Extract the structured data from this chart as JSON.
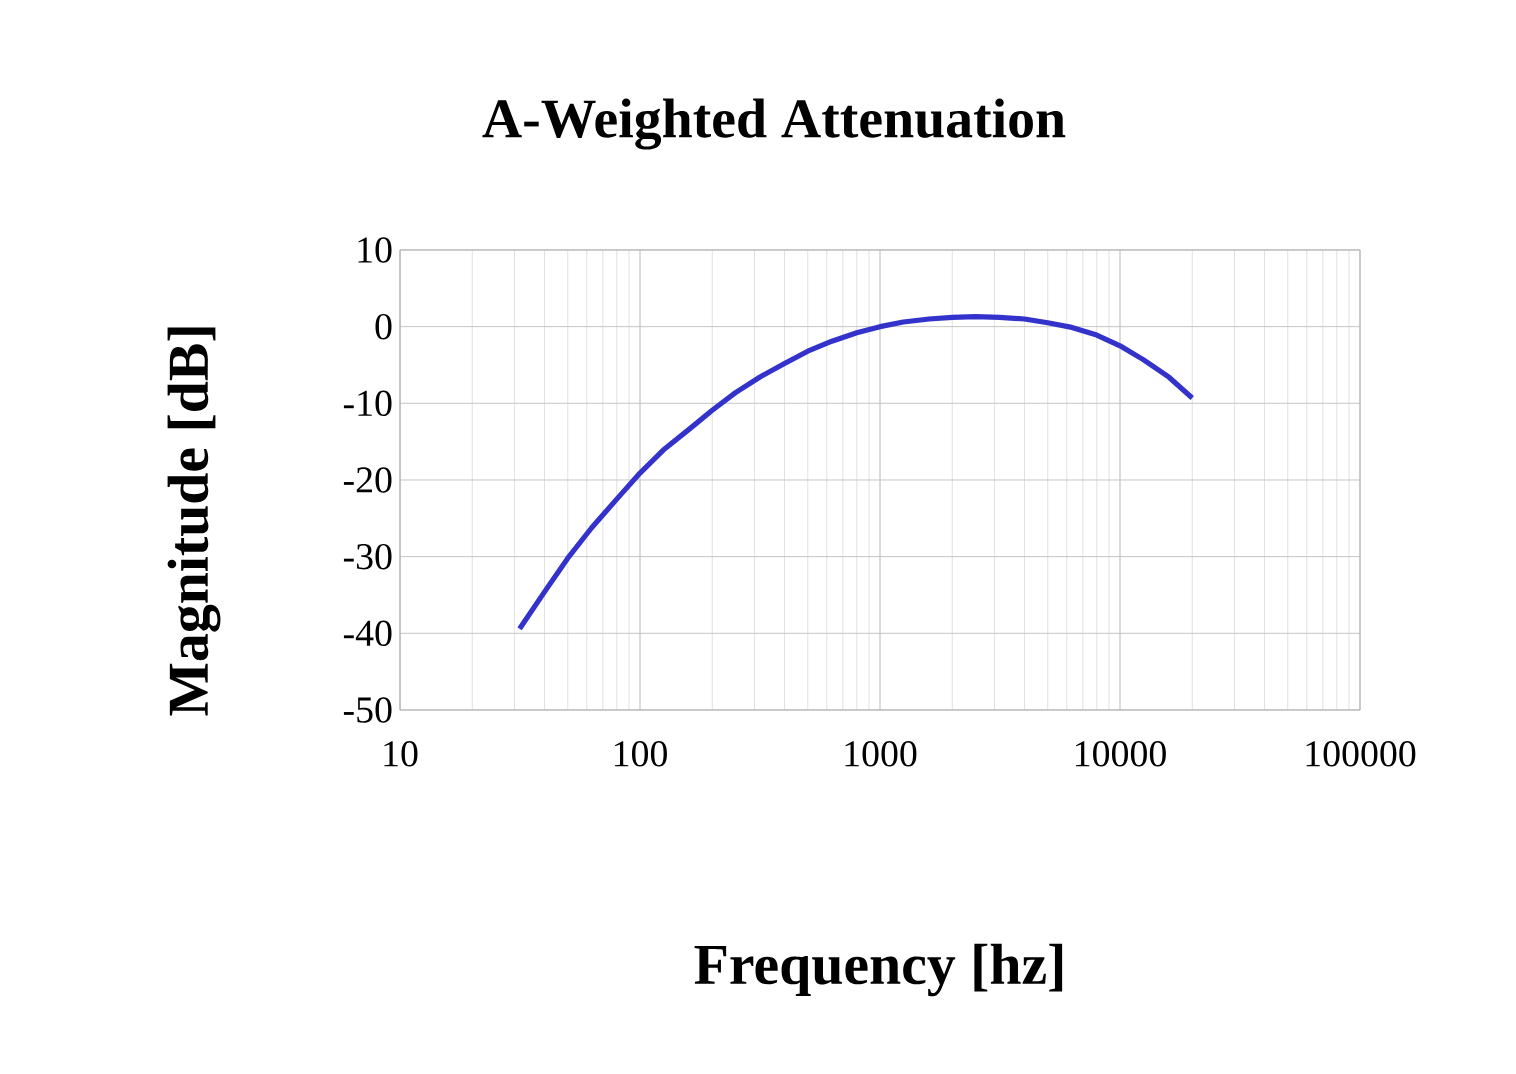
{
  "chart_data": {
    "type": "line",
    "title": "A-Weighted Attenuation",
    "xlabel": "Frequency [hz]",
    "ylabel": "Magnitude [dB]",
    "log": "x",
    "grid": true,
    "xlim": [
      10,
      100000
    ],
    "xticks": [
      10,
      100,
      1000,
      10000,
      100000
    ],
    "ylim": [
      -50,
      10
    ],
    "yticks": [
      -50,
      -40,
      -30,
      -20,
      -10,
      0,
      10
    ],
    "series": [
      {
        "color": "#3333cc",
        "x": [
          31.5,
          40,
          50,
          63,
          80,
          100,
          125,
          160,
          200,
          250,
          315,
          400,
          500,
          630,
          800,
          1000,
          1250,
          1600,
          2000,
          2500,
          3150,
          4000,
          5000,
          6300,
          8000,
          10000,
          12500,
          16000,
          20000
        ],
        "values": [
          -39.4,
          -34.6,
          -30.2,
          -26.2,
          -22.5,
          -19.1,
          -16.1,
          -13.4,
          -10.9,
          -8.6,
          -6.6,
          -4.8,
          -3.2,
          -1.9,
          -0.8,
          0,
          0.6,
          1.0,
          1.2,
          1.3,
          1.2,
          1.0,
          0.5,
          -0.1,
          -1.1,
          -2.5,
          -4.3,
          -6.6,
          -9.3
        ]
      }
    ]
  }
}
